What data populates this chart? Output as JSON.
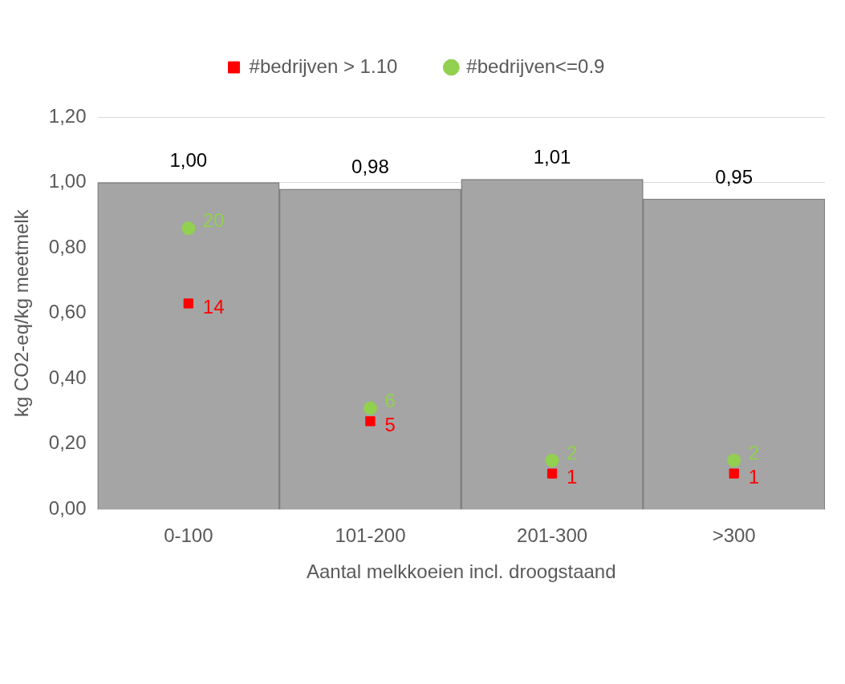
{
  "chart_data": {
    "type": "bar",
    "xlabel": "Aantal melkkoeien incl. droogstaand",
    "ylabel": "kg CO2-eq/kg meetmelk",
    "categories": [
      "0-100",
      "101-200",
      "201-300",
      ">300"
    ],
    "series": [
      {
        "color": "#a5a5a5",
        "values": [
          1.0,
          0.98,
          1.01,
          0.95
        ],
        "value_labels": [
          "1,00",
          "0,98",
          "1,01",
          "0,95"
        ]
      },
      {
        "type": "scatter",
        "name": "#bedrijven > 1.10",
        "color": "#ff0000",
        "marker": "square",
        "values": [
          0.63,
          0.27,
          0.11,
          0.11
        ]
      },
      {
        "type": "scatter",
        "name": "#bedrijven<=0.9",
        "color": "#92d050",
        "marker": "circle",
        "values": [
          0.86,
          0.31,
          0.15,
          0.15
        ]
      }
    ],
    "annotations": [
      {
        "text": "14",
        "x": "0-100",
        "y": 0.63
      },
      {
        "text": "5",
        "x": "101-200",
        "y": 0.27
      },
      {
        "text": "1",
        "x": "201-300",
        "y": 0.11
      },
      {
        "text": "1",
        "x": ">300",
        "y": 0.11
      },
      {
        "text": "20",
        "x": "0-100",
        "y": 0.86
      },
      {
        "text": "6",
        "x": "101-200",
        "y": 0.31
      },
      {
        "text": "2",
        "x": "201-300",
        "y": 0.15
      },
      {
        "text": "2",
        "x": ">300",
        "y": 0.15
      }
    ],
    "ylim": [
      0,
      1.2
    ],
    "yticks": [
      {
        "value": 0,
        "label": "0,00"
      },
      {
        "value": 0.2,
        "label": "0,20"
      },
      {
        "value": 0.4,
        "label": "0,40"
      },
      {
        "value": 0.6,
        "label": "0,60"
      },
      {
        "value": 0.8,
        "label": "0,80"
      },
      {
        "value": 1.0,
        "label": "1,00"
      },
      {
        "value": 1.2,
        "label": "1,20"
      }
    ],
    "grid": "y",
    "legend": "top"
  }
}
